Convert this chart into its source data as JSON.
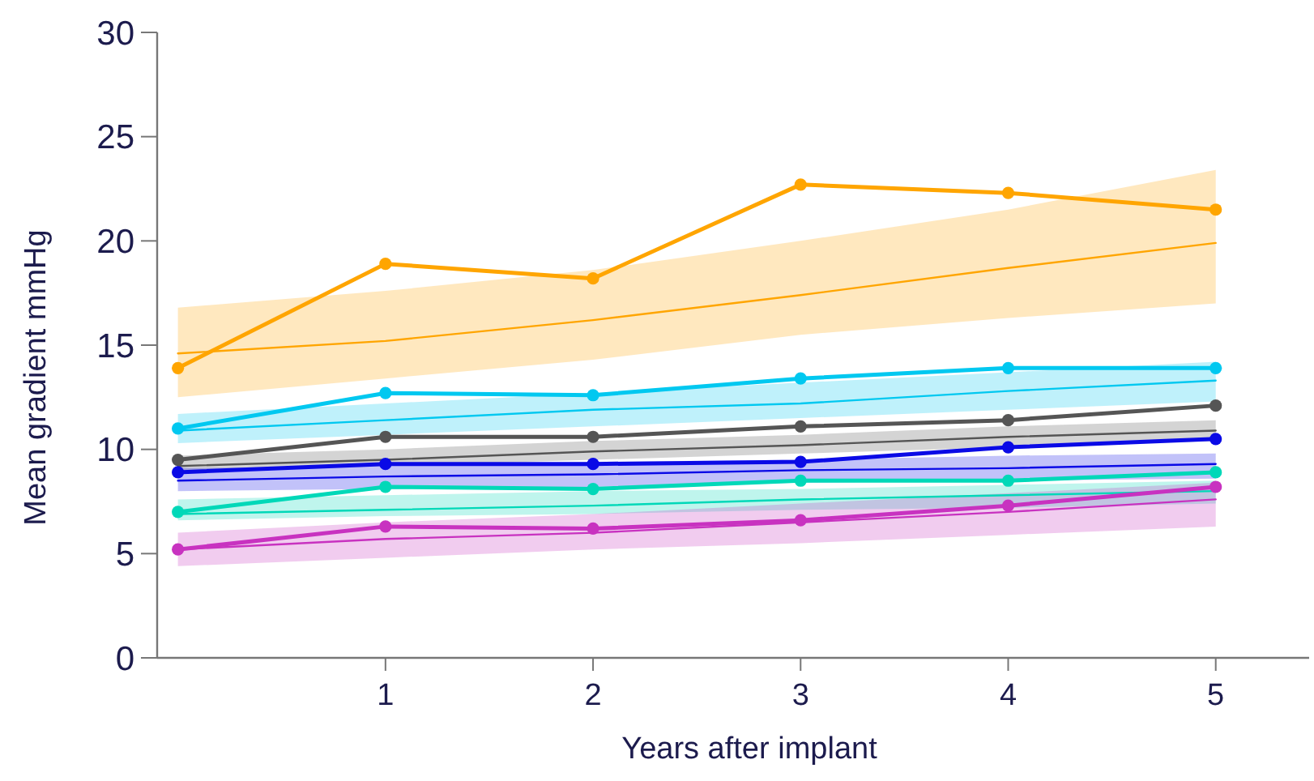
{
  "chart_data": {
    "type": "line",
    "xlabel": "Years after implant",
    "ylabel": "Mean gradient mmHg",
    "x": [
      0,
      1,
      2,
      3,
      4,
      5
    ],
    "xlim": [
      -0.1,
      5.45
    ],
    "xticks": [
      1,
      2,
      3,
      4,
      5
    ],
    "ylim": [
      0,
      30
    ],
    "yticks": [
      0,
      5,
      10,
      15,
      20,
      25,
      30
    ],
    "grid": false,
    "series": [
      {
        "color": "#ffa500",
        "marker": "none",
        "line_style": "solid",
        "values": [
          14.6,
          15.2,
          16.2,
          17.4,
          18.7,
          19.9
        ],
        "lower": [
          12.5,
          13.4,
          14.3,
          15.5,
          16.3,
          17.0
        ],
        "upper": [
          16.8,
          17.6,
          18.6,
          20.0,
          21.5,
          23.4
        ]
      },
      {
        "color": "#00c8f0",
        "marker": "none",
        "line_style": "solid",
        "values": [
          10.9,
          11.4,
          11.9,
          12.2,
          12.8,
          13.3
        ],
        "lower": [
          10.3,
          10.7,
          11.1,
          11.5,
          11.9,
          12.3
        ],
        "upper": [
          11.7,
          12.2,
          12.7,
          13.2,
          13.7,
          14.2
        ]
      },
      {
        "color": "#555555",
        "marker": "none",
        "line_style": "solid",
        "values": [
          9.2,
          9.5,
          9.9,
          10.2,
          10.6,
          10.9
        ],
        "lower": [
          8.9,
          9.2,
          9.5,
          9.8,
          10.1,
          10.4
        ],
        "upper": [
          9.7,
          10.0,
          10.4,
          10.7,
          11.1,
          11.4
        ]
      },
      {
        "color": "#0a0ae6",
        "marker": "none",
        "line_style": "solid",
        "values": [
          8.5,
          8.7,
          8.8,
          9.0,
          9.1,
          9.3
        ],
        "lower": [
          8.0,
          8.1,
          8.2,
          8.4,
          8.5,
          8.6
        ],
        "upper": [
          9.1,
          9.2,
          9.4,
          9.5,
          9.7,
          9.8
        ]
      },
      {
        "color": "#00d8b8",
        "marker": "none",
        "line_style": "solid",
        "values": [
          6.9,
          7.1,
          7.3,
          7.6,
          7.8,
          8.0
        ],
        "lower": [
          6.6,
          6.8,
          6.9,
          7.1,
          7.2,
          7.4
        ],
        "upper": [
          7.6,
          7.8,
          8.0,
          8.1,
          8.3,
          8.5
        ]
      },
      {
        "color": "#c832c0",
        "marker": "none",
        "line_style": "solid",
        "values": [
          5.2,
          5.7,
          6.0,
          6.5,
          7.0,
          7.6
        ],
        "lower": [
          4.4,
          4.8,
          5.2,
          5.5,
          5.9,
          6.3
        ],
        "upper": [
          6.0,
          6.5,
          6.9,
          7.4,
          7.9,
          8.4
        ]
      },
      {
        "color": "#ffa500",
        "marker": "circle",
        "line_style": "solid",
        "values": [
          13.9,
          18.9,
          18.2,
          22.7,
          22.3,
          21.5
        ]
      },
      {
        "color": "#00c8f0",
        "marker": "circle",
        "line_style": "solid",
        "values": [
          11.0,
          12.7,
          12.6,
          13.4,
          13.9,
          13.9
        ]
      },
      {
        "color": "#555555",
        "marker": "circle",
        "line_style": "solid",
        "values": [
          9.5,
          10.6,
          10.6,
          11.1,
          11.4,
          12.1
        ]
      },
      {
        "color": "#0a0ae6",
        "marker": "circle",
        "line_style": "solid",
        "values": [
          8.9,
          9.3,
          9.3,
          9.4,
          10.1,
          10.5
        ]
      },
      {
        "color": "#00d8b8",
        "marker": "circle",
        "line_style": "solid",
        "values": [
          7.0,
          8.2,
          8.1,
          8.5,
          8.5,
          8.9
        ]
      },
      {
        "color": "#c832c0",
        "marker": "circle",
        "line_style": "solid",
        "values": [
          5.2,
          6.3,
          6.2,
          6.6,
          7.3,
          8.2
        ]
      }
    ]
  }
}
